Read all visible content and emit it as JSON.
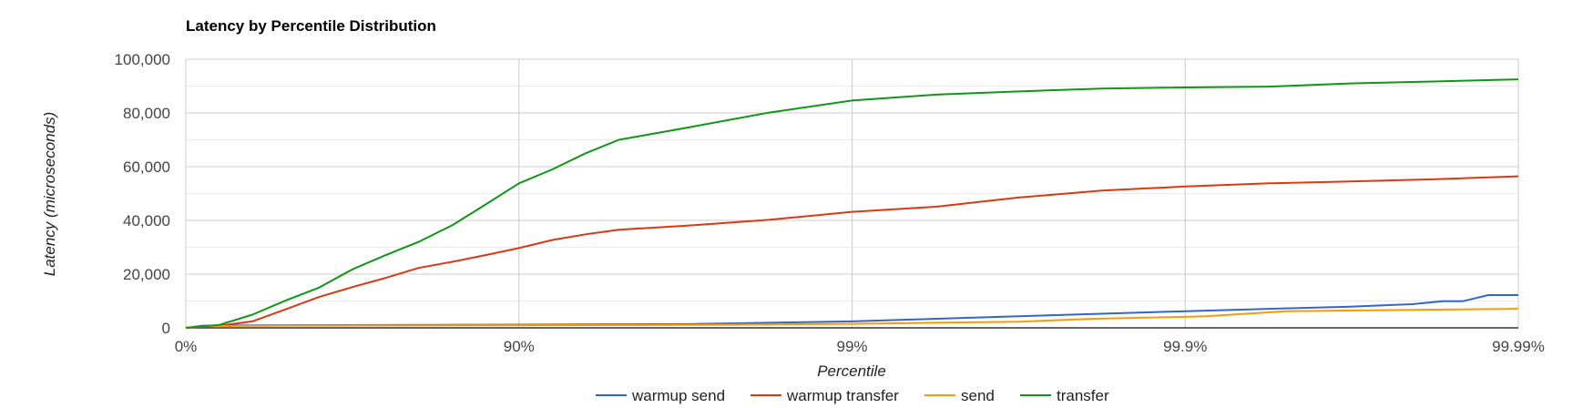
{
  "chart_data": {
    "type": "line",
    "title": "Latency by Percentile Distribution",
    "xlabel": "Percentile",
    "ylabel": "Latency (microseconds)",
    "x_scale": "log of 1/(1-percentile)",
    "x_ticks": [
      "0%",
      "90%",
      "99%",
      "99.9%",
      "99.99%"
    ],
    "x_tick_values": [
      0,
      90,
      99,
      99.9,
      99.99
    ],
    "y_ticks": [
      "0",
      "20,000",
      "40,000",
      "60,000",
      "80,000",
      "100,000"
    ],
    "ylim": [
      0,
      100000
    ],
    "grid": true,
    "legend_position": "bottom",
    "series": [
      {
        "name": "warmup send",
        "color": "#3366cc",
        "x": [
          0,
          10.9,
          50,
          90,
          96.84,
          99,
          99.684,
          99.9,
          99.968,
          99.9792,
          99.9831,
          99.9853,
          99.9877,
          99.99
        ],
        "y": [
          0,
          800,
          1000,
          1200,
          1400,
          2400,
          4300,
          6200,
          7900,
          8800,
          9900,
          9900,
          12200,
          12200
        ]
      },
      {
        "name": "warmup transfer",
        "color": "#dc3912",
        "x": [
          0,
          20.6,
          36.9,
          49.9,
          60.2,
          68.4,
          74.9,
          80,
          84.2,
          87.4,
          90,
          92.06,
          93.69,
          94.99,
          96.84,
          98.22,
          99,
          99.44,
          99.684,
          99.822,
          99.9,
          99.944,
          99.968,
          99.982,
          99.99
        ],
        "y": [
          0,
          790,
          2400,
          6900,
          11500,
          15200,
          18600,
          22300,
          24600,
          27100,
          29700,
          32700,
          34800,
          36500,
          38000,
          40200,
          43200,
          45100,
          48500,
          51100,
          52600,
          53800,
          54500,
          55300,
          56400
        ]
      },
      {
        "name": "send",
        "color": "#ff9900",
        "x": [
          0,
          10.9,
          50,
          90,
          96.84,
          99,
          99.684,
          99.813,
          99.9,
          99.9133,
          99.9503,
          99.99
        ],
        "y": [
          0,
          600,
          800,
          1000,
          1100,
          1500,
          2300,
          3400,
          4100,
          4300,
          6200,
          7100
        ]
      },
      {
        "name": "transfer",
        "color": "#109618",
        "x": [
          0,
          20.6,
          36.9,
          49.9,
          60.2,
          68.4,
          74.9,
          80,
          84.2,
          87.4,
          90,
          92.06,
          93.69,
          94.99,
          96.02,
          96.84,
          98.22,
          99,
          99.44,
          99.684,
          99.822,
          99.9,
          99.944,
          99.968,
          99.982,
          99.99
        ],
        "y": [
          0,
          1100,
          4900,
          10200,
          15000,
          21800,
          27100,
          32000,
          38300,
          45900,
          53800,
          59000,
          65000,
          70000,
          72200,
          74400,
          80100,
          84600,
          86800,
          88000,
          89100,
          89500,
          89800,
          91000,
          91700,
          92500
        ]
      }
    ]
  }
}
